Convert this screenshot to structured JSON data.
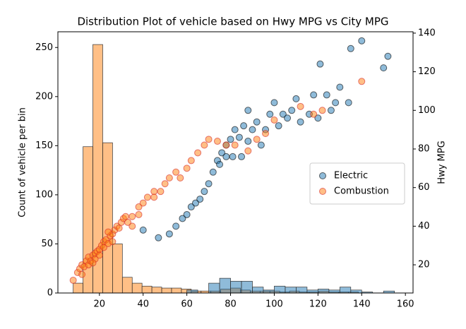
{
  "chart_data": {
    "type": "histogram+scatter",
    "title": "Distribution Plot of vehicle based on Hwy MPG vs City MPG",
    "ylabel": "Count of vehicle per bin",
    "y2label": "Hwy MPG",
    "xlim": [
      1,
      163.5
    ],
    "xticks": [
      20,
      40,
      60,
      80,
      100,
      120,
      140,
      160
    ],
    "ylim": [
      0,
      266
    ],
    "yticks": [
      0,
      50,
      100,
      150,
      200,
      250
    ],
    "y2lim": [
      5.4,
      140.7
    ],
    "y2ticks": [
      20,
      40,
      60,
      80,
      100,
      120,
      140
    ],
    "grid": false,
    "legend": "center right",
    "series": [
      {
        "type": "histogram",
        "color": "#ff7f0e",
        "bins": [
          8,
          12.5,
          17,
          21.5,
          26,
          30.5,
          35,
          39.5,
          44,
          48.5,
          53,
          57.5,
          62,
          66.5,
          71,
          75.5,
          80,
          84.5,
          89,
          93.5,
          98,
          102.5,
          107,
          111.5,
          116,
          120.5,
          125,
          129.5,
          134,
          138.5
        ],
        "values": [
          10,
          149,
          253,
          153,
          50,
          16,
          10,
          7,
          6,
          5,
          5,
          4,
          2,
          2,
          2,
          4,
          5,
          3,
          2,
          2,
          2,
          1,
          2,
          1,
          1,
          2,
          1,
          1,
          1
        ]
      },
      {
        "type": "histogram",
        "color": "#1f77b4",
        "bins": [
          60,
          65,
          70,
          75,
          80,
          85,
          90,
          95,
          100,
          105,
          110,
          115,
          120,
          125,
          130,
          135,
          140,
          145,
          150,
          155
        ],
        "values": [
          3,
          0,
          10,
          15,
          12,
          12,
          6,
          3,
          7,
          6,
          6,
          3,
          4,
          3,
          6,
          3,
          1,
          0,
          2
        ]
      },
      {
        "type": "scatter",
        "name": "Electric",
        "color": "#1f77b4",
        "axis": "y2",
        "x": [
          40,
          47,
          52,
          55,
          58,
          60,
          62,
          64,
          66,
          68,
          70,
          72,
          74,
          76,
          78,
          80,
          81,
          82,
          84,
          86,
          88,
          90,
          92,
          94,
          96,
          98,
          100,
          102,
          104,
          106,
          108,
          110,
          112,
          116,
          118,
          120,
          121,
          124,
          126,
          128,
          130,
          134,
          135,
          140,
          150,
          152,
          75,
          85,
          78,
          88
        ],
        "values": [
          38,
          34,
          36,
          40,
          44,
          46,
          50,
          52,
          54,
          58,
          62,
          68,
          74,
          78,
          82,
          85,
          76,
          90,
          86,
          92,
          84,
          90,
          94,
          82,
          90,
          98,
          104,
          92,
          98,
          96,
          100,
          106,
          94,
          98,
          108,
          96,
          124,
          108,
          100,
          104,
          112,
          104,
          132,
          136,
          122,
          128,
          72,
          76,
          76,
          100
        ]
      },
      {
        "type": "scatter",
        "name": "Combustion",
        "color": "#ff7f0e",
        "axis": "y2",
        "x": [
          8,
          10,
          11,
          12,
          13,
          14,
          15,
          15,
          16,
          17,
          18,
          18,
          19,
          20,
          20,
          21,
          22,
          22,
          23,
          24,
          25,
          26,
          27,
          28,
          29,
          30,
          31,
          32,
          35,
          38,
          40,
          42,
          45,
          48,
          50,
          52,
          55,
          57,
          60,
          62,
          65,
          68,
          70,
          74,
          78,
          82,
          88,
          92,
          96,
          100,
          112,
          118,
          122,
          140,
          35,
          38,
          45,
          33,
          12,
          17,
          26,
          24
        ],
        "values": [
          12,
          16,
          18,
          20,
          19,
          22,
          24,
          20,
          22,
          25,
          26,
          23,
          27,
          28,
          25,
          30,
          29,
          32,
          33,
          31,
          35,
          36,
          38,
          40,
          39,
          42,
          44,
          45,
          45,
          50,
          52,
          55,
          58,
          58,
          62,
          65,
          68,
          65,
          70,
          74,
          78,
          82,
          85,
          84,
          82,
          82,
          79,
          85,
          88,
          95,
          102,
          98,
          100,
          115,
          40,
          46,
          55,
          42,
          15,
          21,
          32,
          37
        ]
      }
    ]
  }
}
